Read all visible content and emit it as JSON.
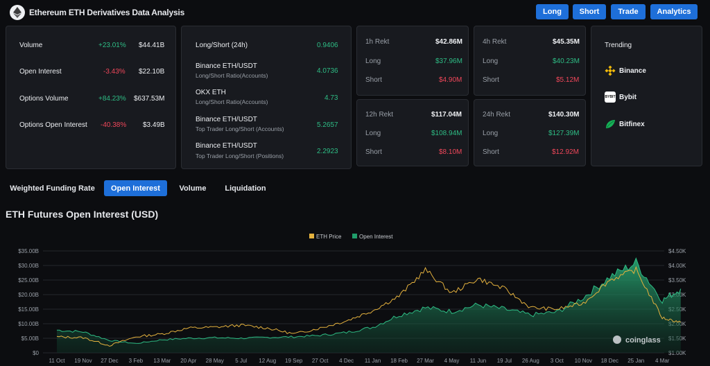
{
  "header": {
    "title": "Ethereum ETH Derivatives Data Analysis",
    "buttons": [
      "Long",
      "Short",
      "Trade",
      "Analytics"
    ]
  },
  "overview": {
    "rows": [
      {
        "label": "Volume",
        "change": "+23.01%",
        "value": "$44.41B",
        "dir": "up"
      },
      {
        "label": "Open Interest",
        "change": "-3.43%",
        "value": "$22.10B",
        "dir": "down"
      },
      {
        "label": "Options Volume",
        "change": "+84.23%",
        "value": "$637.53M",
        "dir": "up"
      },
      {
        "label": "Options Open Interest",
        "change": "-40.38%",
        "value": "$3.49B",
        "dir": "down"
      }
    ]
  },
  "long_short": {
    "rows": [
      {
        "title": "Long/Short (24h)",
        "sub": "",
        "value": "0.9406"
      },
      {
        "title": "Binance ETH/USDT",
        "sub": "Long/Short Ratio(Accounts)",
        "value": "4.0736"
      },
      {
        "title": "OKX ETH",
        "sub": "Long/Short Ratio(Accounts)",
        "value": "4.73"
      },
      {
        "title": "Binance ETH/USDT",
        "sub": "Top Trader Long/Short (Accounts)",
        "value": "5.2657"
      },
      {
        "title": "Binance ETH/USDT",
        "sub": "Top Trader Long/Short (Positions)",
        "value": "2.2923"
      }
    ]
  },
  "rekt": [
    {
      "label": "1h Rekt",
      "total": "$42.86M",
      "long_label": "Long",
      "long": "$37.96M",
      "short_label": "Short",
      "short": "$4.90M"
    },
    {
      "label": "4h Rekt",
      "total": "$45.35M",
      "long_label": "Long",
      "long": "$40.23M",
      "short_label": "Short",
      "short": "$5.12M"
    },
    {
      "label": "12h Rekt",
      "total": "$117.04M",
      "long_label": "Long",
      "long": "$108.94M",
      "short_label": "Short",
      "short": "$8.10M"
    },
    {
      "label": "24h Rekt",
      "total": "$140.30M",
      "long_label": "Long",
      "long": "$127.39M",
      "short_label": "Short",
      "short": "$12.92M"
    }
  ],
  "trending": {
    "title": "Trending",
    "items": [
      {
        "name": "Binance",
        "icon": "binance-icon",
        "color": "#f0b90b"
      },
      {
        "name": "Bybit",
        "icon": "bybit-icon",
        "color": "#ffffff"
      },
      {
        "name": "Bitfinex",
        "icon": "bitfinex-icon",
        "color": "#16b157"
      }
    ]
  },
  "tabs": {
    "items": [
      "Weighted Funding Rate",
      "Open Interest",
      "Volume",
      "Liquidation"
    ],
    "active": "Open Interest"
  },
  "section_title": "ETH Futures Open Interest (USD)",
  "chart_data": {
    "type": "area",
    "watermark": "coinglass",
    "legend": {
      "placement": "top-center",
      "entries": [
        {
          "name": "ETH Price",
          "color": "#e5b23e"
        },
        {
          "name": "Open Interest",
          "color": "#1f9d6a"
        }
      ]
    },
    "x_ticks": [
      "11 Oct",
      "19 Nov",
      "27 Dec",
      "3 Feb",
      "13 Mar",
      "20 Apr",
      "28 May",
      "5 Jul",
      "12 Aug",
      "19 Sep",
      "27 Oct",
      "4 Dec",
      "11 Jan",
      "18 Feb",
      "27 Mar",
      "4 May",
      "11 Jun",
      "19 Jul",
      "26 Aug",
      "3 Oct",
      "10 Nov",
      "18 Dec",
      "25 Jan",
      "4 Mar"
    ],
    "y_left": {
      "ticks": [
        "$0",
        "$5.00B",
        "$10.00B",
        "$15.00B",
        "$20.00B",
        "$25.00B",
        "$30.00B",
        "$35.00B"
      ],
      "range": [
        0,
        35
      ]
    },
    "y_right": {
      "ticks": [
        "$1.00K",
        "$1.50K",
        "$2.00K",
        "$2.50K",
        "$3.00K",
        "$3.50K",
        "$4.00K",
        "$4.50K"
      ],
      "range": [
        1.0,
        4.5
      ]
    },
    "grid": true,
    "series": [
      {
        "name": "Open Interest",
        "axis": "left",
        "unit": "billion USD",
        "x": [
          0,
          1,
          2,
          3,
          4,
          5,
          6,
          7,
          8,
          9,
          10,
          11,
          12,
          13,
          14,
          15,
          16,
          17,
          18,
          19,
          20,
          21,
          22,
          23,
          23.7
        ],
        "values": [
          7.8,
          7.2,
          4.3,
          3.2,
          4.5,
          5.0,
          5.2,
          5.0,
          5.3,
          5.5,
          6.0,
          7.0,
          8.8,
          13.0,
          15.5,
          14.2,
          16.5,
          15.0,
          13.0,
          14.0,
          19.0,
          26.0,
          31.0,
          18.0,
          22.0
        ]
      },
      {
        "name": "ETH Price",
        "axis": "right",
        "unit": "thousand USD",
        "x": [
          0,
          1,
          2,
          3,
          4,
          5,
          6,
          7,
          8,
          9,
          10,
          11,
          12,
          13,
          14,
          15,
          16,
          17,
          18,
          19,
          20,
          21,
          22,
          23,
          23.7
        ],
        "values": [
          1.55,
          1.52,
          1.25,
          1.55,
          1.65,
          1.85,
          1.88,
          1.95,
          1.85,
          1.65,
          1.85,
          2.1,
          2.45,
          2.95,
          3.85,
          3.05,
          3.55,
          3.2,
          2.55,
          2.5,
          2.7,
          3.5,
          3.85,
          2.2,
          2.05
        ]
      }
    ]
  }
}
